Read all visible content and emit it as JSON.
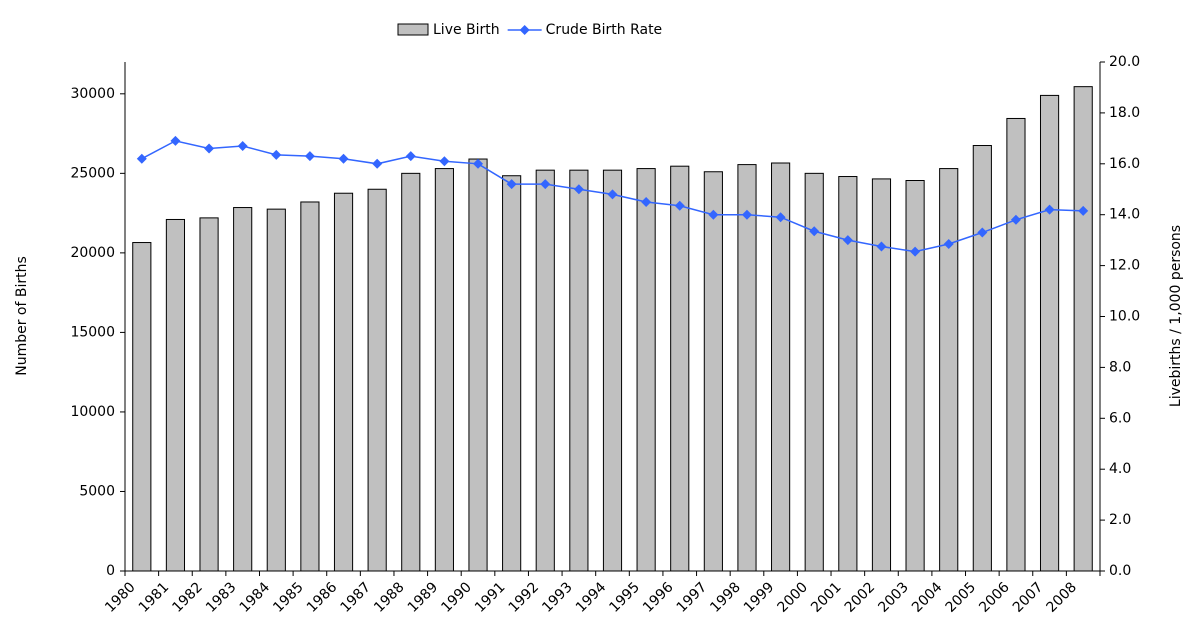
{
  "chart_data": {
    "type": "bar_line",
    "categories": [
      "1980",
      "1981",
      "1982",
      "1983",
      "1984",
      "1985",
      "1986",
      "1987",
      "1988",
      "1989",
      "1990",
      "1991",
      "1992",
      "1993",
      "1994",
      "1995",
      "1996",
      "1997",
      "1998",
      "1999",
      "2000",
      "2001",
      "2002",
      "2003",
      "2004",
      "2005",
      "2006",
      "2007",
      "2008"
    ],
    "series": [
      {
        "name": "Live Birth",
        "type": "bar",
        "color": "#c0c0c0",
        "values": [
          20650,
          22100,
          22200,
          22850,
          22750,
          23200,
          23750,
          24000,
          25000,
          25300,
          25900,
          24850,
          25200,
          25200,
          25200,
          25300,
          25450,
          25100,
          25550,
          25650,
          25000,
          24800,
          24650,
          24550,
          25300,
          26750,
          28450,
          29900,
          30450
        ]
      },
      {
        "name": "Crude Birth Rate",
        "type": "line",
        "axis": "y2",
        "color": "#3366ff",
        "values": [
          16.2,
          16.9,
          16.6,
          16.7,
          16.35,
          16.3,
          16.2,
          16.0,
          16.3,
          16.1,
          16.0,
          15.2,
          15.2,
          15.0,
          14.8,
          14.5,
          14.35,
          14.0,
          14.0,
          13.9,
          13.35,
          13.0,
          12.75,
          12.55,
          12.85,
          13.3,
          13.8,
          14.2,
          14.15
        ]
      }
    ],
    "ylabel": "Number of Births",
    "y2label": "Livebirths / 1,000 persons",
    "ylim": [
      0,
      32000
    ],
    "yticks": [
      0,
      5000,
      10000,
      15000,
      20000,
      25000,
      30000
    ],
    "y2lim": [
      0,
      20
    ],
    "y2ticks": [
      {
        "value": 0,
        "label": "0.0"
      },
      {
        "value": 2,
        "label": "2.0"
      },
      {
        "value": 4,
        "label": "4.0"
      },
      {
        "value": 6,
        "label": "6.0"
      },
      {
        "value": 8,
        "label": "8.0"
      },
      {
        "value": 10,
        "label": "10.0"
      },
      {
        "value": 12,
        "label": "12.0"
      },
      {
        "value": 14,
        "label": "14.0"
      },
      {
        "value": 16,
        "label": "16.0"
      },
      {
        "value": 18,
        "label": "18.0"
      },
      {
        "value": 20,
        "label": "20.0"
      }
    ],
    "legend": "top"
  }
}
